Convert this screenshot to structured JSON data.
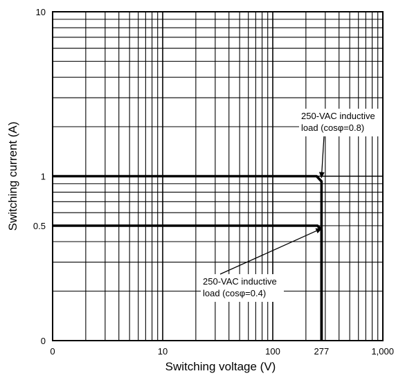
{
  "chart_data": {
    "type": "line",
    "title": "",
    "xlabel": "Switching voltage (V)",
    "ylabel": "Switching current (A)",
    "x_scale": "log",
    "y_scale": "log",
    "xlim": [
      1,
      1000
    ],
    "ylim": [
      0.1,
      10
    ],
    "grid": true,
    "x_ticks": [
      {
        "value": 1,
        "label": "0"
      },
      {
        "value": 10,
        "label": "10"
      },
      {
        "value": 100,
        "label": "100"
      },
      {
        "value": 277,
        "label": "277"
      },
      {
        "value": 1000,
        "label": "1,000"
      }
    ],
    "y_ticks": [
      {
        "value": 0.1,
        "label": "0"
      },
      {
        "value": 0.5,
        "label": "0.5"
      },
      {
        "value": 1,
        "label": "1"
      },
      {
        "value": 10,
        "label": "10"
      }
    ],
    "series": [
      {
        "x": [
          1,
          250,
          277,
          277
        ],
        "y": [
          1,
          1,
          0.93,
          0.1
        ]
      },
      {
        "x": [
          1,
          255,
          277,
          277
        ],
        "y": [
          0.5,
          0.5,
          0.47,
          0.1
        ]
      }
    ],
    "annotations": [
      {
        "lines": [
          "250-VAC inductive",
          "load (cosφ=0.8)"
        ],
        "target": [
          277,
          0.98
        ]
      },
      {
        "lines": [
          "250-VAC inductive",
          "load (cosφ=0.4)"
        ],
        "target": [
          277,
          0.48
        ]
      }
    ]
  }
}
